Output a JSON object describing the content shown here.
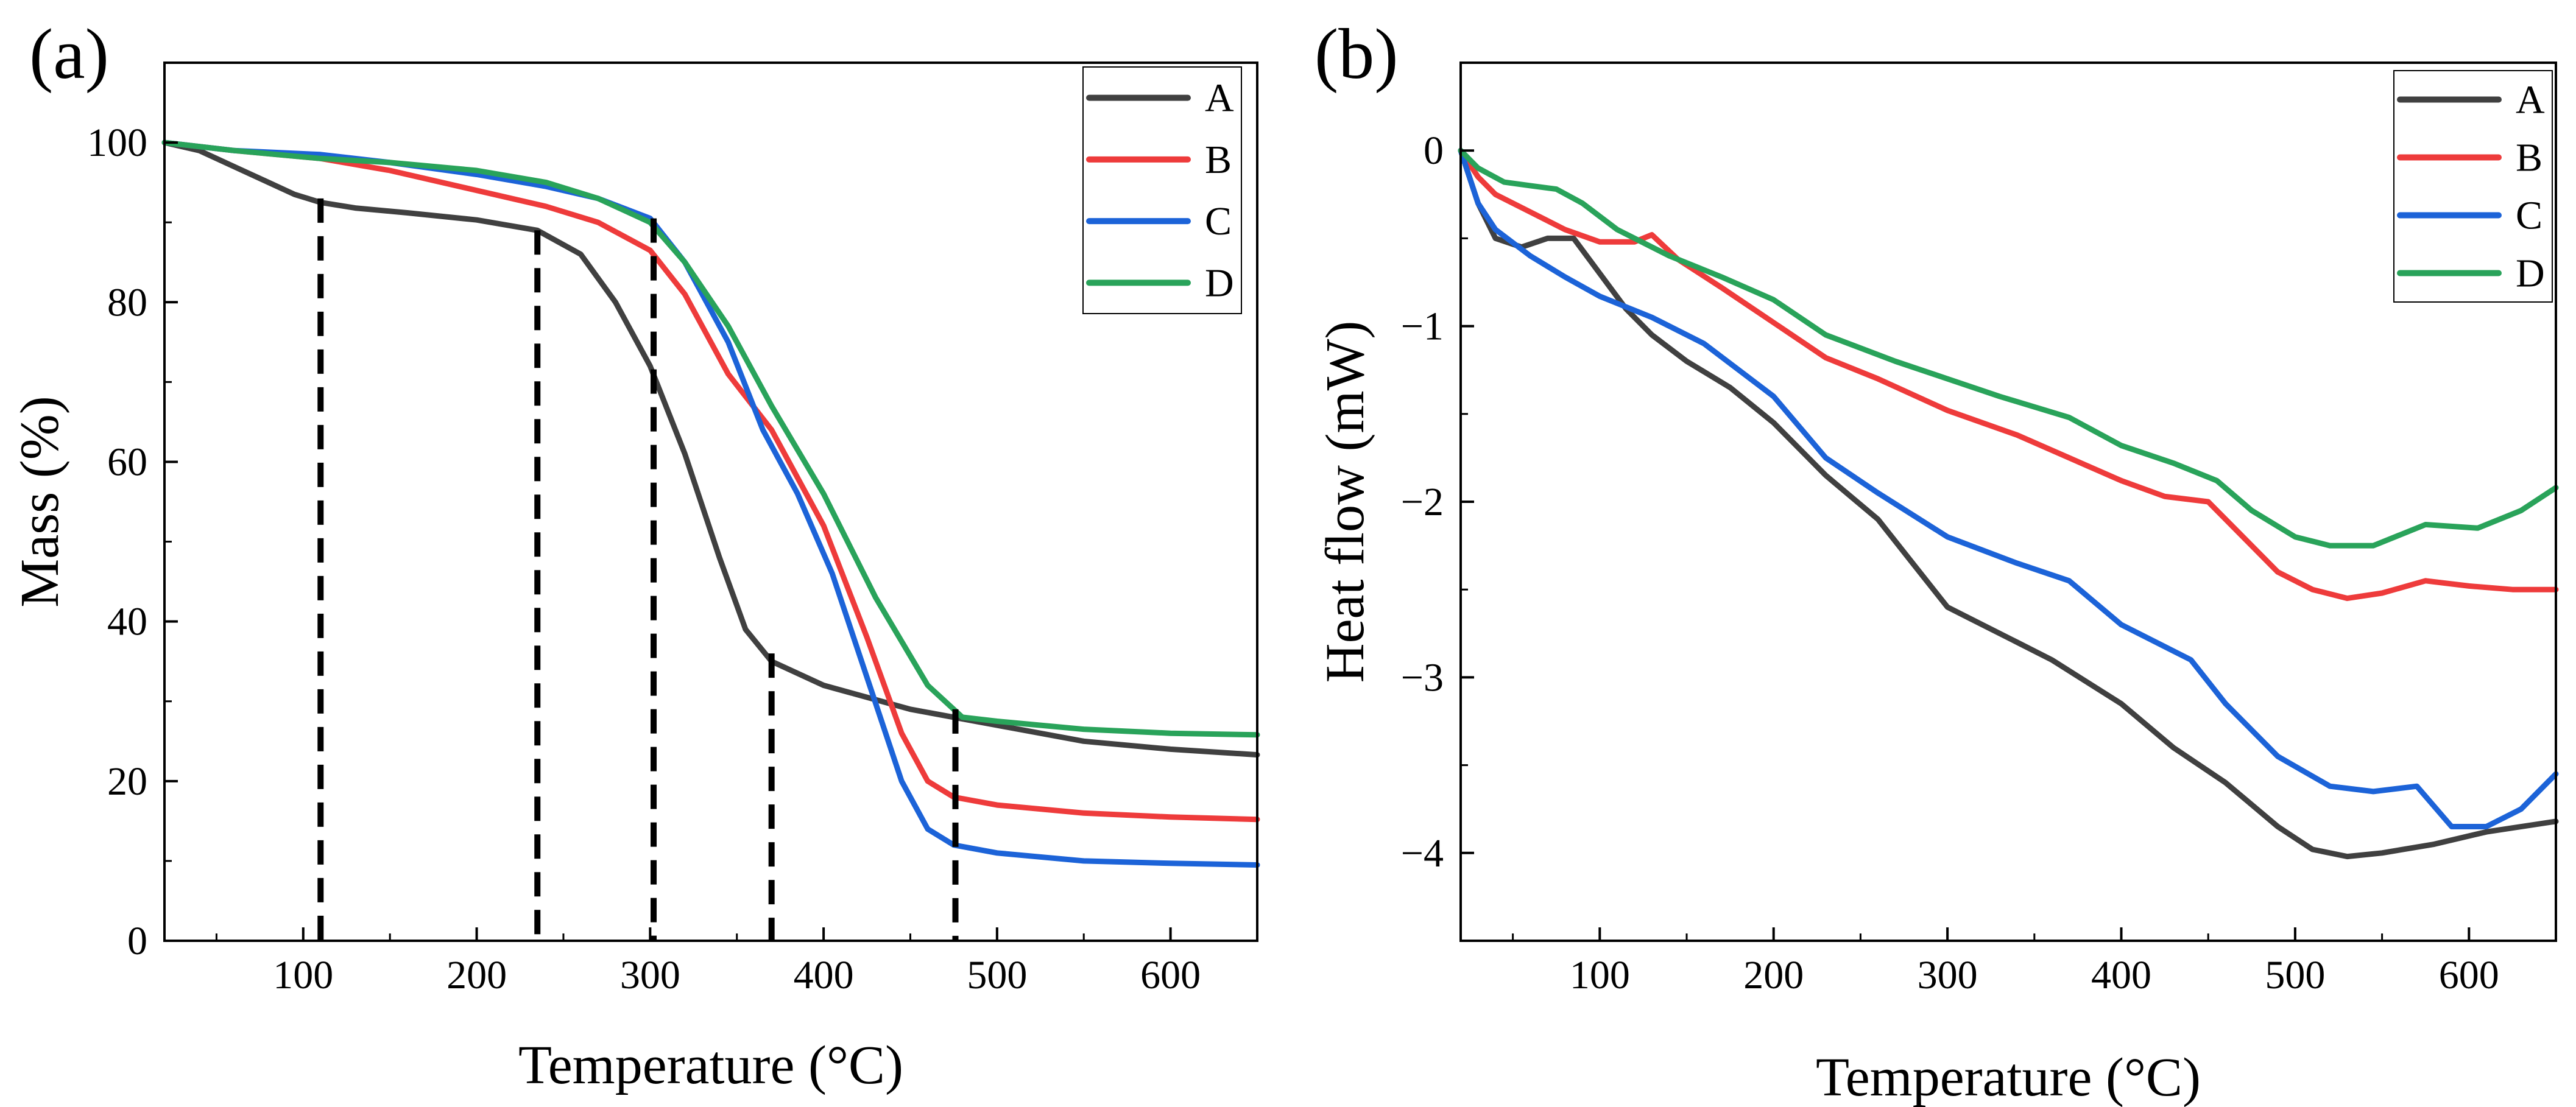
{
  "chart_data": [
    {
      "type": "line",
      "panel_label": "(a)",
      "title": "",
      "xlabel": "Temperature (°C)",
      "ylabel": "Mass (%)",
      "xlim": [
        20,
        650
      ],
      "ylim": [
        0,
        110
      ],
      "xticks": [
        100,
        200,
        300,
        400,
        500,
        600
      ],
      "yticks": [
        0,
        20,
        40,
        60,
        80,
        100
      ],
      "grid": false,
      "legend_position": "top-right",
      "series": [
        {
          "name": "A",
          "color": "#404040",
          "x": [
            20,
            40,
            60,
            80,
            95,
            110,
            130,
            160,
            200,
            235,
            260,
            280,
            300,
            320,
            340,
            355,
            370,
            400,
            450,
            500,
            550,
            600,
            650
          ],
          "y": [
            100,
            99,
            97,
            95,
            93.5,
            92.5,
            91.8,
            91.2,
            90.3,
            89,
            86,
            80,
            72,
            61,
            48,
            39,
            35,
            32,
            29,
            27,
            25,
            24,
            23.3
          ]
        },
        {
          "name": "B",
          "color": "#ee3b3b",
          "x": [
            20,
            60,
            110,
            150,
            200,
            240,
            270,
            300,
            320,
            345,
            370,
            400,
            425,
            445,
            460,
            475,
            500,
            550,
            600,
            650
          ],
          "y": [
            100,
            99,
            98,
            96.5,
            94,
            92,
            90,
            86.5,
            81,
            71,
            64,
            52,
            38,
            26,
            20,
            18,
            17,
            16,
            15.5,
            15.2
          ]
        },
        {
          "name": "C",
          "color": "#1c63d8",
          "x": [
            20,
            60,
            110,
            150,
            200,
            240,
            270,
            300,
            320,
            345,
            365,
            385,
            405,
            425,
            445,
            460,
            475,
            500,
            550,
            600,
            650
          ],
          "y": [
            100,
            99,
            98.5,
            97.5,
            96,
            94.5,
            93,
            90.5,
            85,
            75,
            64,
            56,
            46,
            33,
            20,
            14,
            12,
            11,
            10,
            9.7,
            9.5
          ]
        },
        {
          "name": "D",
          "color": "#29a35a",
          "x": [
            20,
            60,
            110,
            150,
            200,
            240,
            270,
            300,
            320,
            345,
            370,
            400,
            430,
            460,
            480,
            500,
            550,
            600,
            650
          ],
          "y": [
            100,
            99,
            98,
            97.5,
            96.5,
            95,
            93,
            90,
            85,
            77,
            67,
            56,
            43,
            32,
            28,
            27.5,
            26.5,
            26,
            25.8
          ]
        }
      ],
      "markers": {
        "type": "vertical-dashed",
        "x": [
          110,
          235,
          302,
          370,
          476
        ],
        "y_top": [
          93,
          89,
          90.5,
          36,
          29
        ]
      }
    },
    {
      "type": "line",
      "panel_label": "(b)",
      "title": "",
      "xlabel": "Temperature (°C)",
      "ylabel": "Heat flow (mW)",
      "xlim": [
        20,
        650
      ],
      "ylim": [
        -4.5,
        0.5
      ],
      "xticks": [
        100,
        200,
        300,
        400,
        500,
        600
      ],
      "yticks": [
        -4,
        -3,
        -2,
        -1,
        0
      ],
      "ytick_labels": [
        "−4",
        "−3",
        "−2",
        "−1",
        "0"
      ],
      "grid": false,
      "legend_position": "top-right",
      "series": [
        {
          "name": "A",
          "color": "#404040",
          "x": [
            20,
            30,
            40,
            55,
            70,
            85,
            100,
            115,
            130,
            150,
            175,
            200,
            230,
            260,
            280,
            300,
            320,
            340,
            360,
            400,
            430,
            460,
            490,
            510,
            530,
            550,
            580,
            610,
            650
          ],
          "y": [
            0,
            -0.3,
            -0.5,
            -0.55,
            -0.5,
            -0.5,
            -0.7,
            -0.9,
            -1.05,
            -1.2,
            -1.35,
            -1.55,
            -1.85,
            -2.1,
            -2.35,
            -2.6,
            -2.7,
            -2.8,
            -2.9,
            -3.15,
            -3.4,
            -3.6,
            -3.85,
            -3.98,
            -4.02,
            -4.0,
            -3.95,
            -3.88,
            -3.82
          ]
        },
        {
          "name": "B",
          "color": "#ee3b3b",
          "x": [
            20,
            30,
            40,
            60,
            80,
            100,
            120,
            130,
            145,
            170,
            200,
            230,
            260,
            300,
            340,
            370,
            400,
            425,
            450,
            470,
            490,
            510,
            530,
            550,
            575,
            600,
            625,
            650
          ],
          "y": [
            0,
            -0.15,
            -0.25,
            -0.35,
            -0.45,
            -0.52,
            -0.52,
            -0.48,
            -0.62,
            -0.78,
            -0.98,
            -1.18,
            -1.3,
            -1.48,
            -1.62,
            -1.75,
            -1.88,
            -1.97,
            -2.0,
            -2.2,
            -2.4,
            -2.5,
            -2.55,
            -2.52,
            -2.45,
            -2.48,
            -2.5,
            -2.5
          ]
        },
        {
          "name": "C",
          "color": "#1c63d8",
          "x": [
            20,
            30,
            40,
            60,
            80,
            100,
            130,
            160,
            200,
            230,
            260,
            300,
            340,
            370,
            400,
            440,
            460,
            490,
            520,
            545,
            570,
            590,
            610,
            630,
            650
          ],
          "y": [
            0,
            -0.3,
            -0.45,
            -0.6,
            -0.72,
            -0.83,
            -0.95,
            -1.1,
            -1.4,
            -1.75,
            -1.95,
            -2.2,
            -2.35,
            -2.45,
            -2.7,
            -2.9,
            -3.15,
            -3.45,
            -3.62,
            -3.65,
            -3.62,
            -3.85,
            -3.85,
            -3.75,
            -3.55
          ]
        },
        {
          "name": "D",
          "color": "#29a35a",
          "x": [
            20,
            30,
            45,
            60,
            75,
            90,
            110,
            140,
            170,
            200,
            230,
            270,
            300,
            330,
            370,
            400,
            430,
            455,
            475,
            500,
            520,
            545,
            575,
            605,
            630,
            650
          ],
          "y": [
            0,
            -0.1,
            -0.18,
            -0.2,
            -0.22,
            -0.3,
            -0.45,
            -0.6,
            -0.72,
            -0.85,
            -1.05,
            -1.2,
            -1.3,
            -1.4,
            -1.52,
            -1.68,
            -1.78,
            -1.88,
            -2.05,
            -2.2,
            -2.25,
            -2.25,
            -2.13,
            -2.15,
            -2.05,
            -1.92
          ]
        }
      ]
    }
  ]
}
